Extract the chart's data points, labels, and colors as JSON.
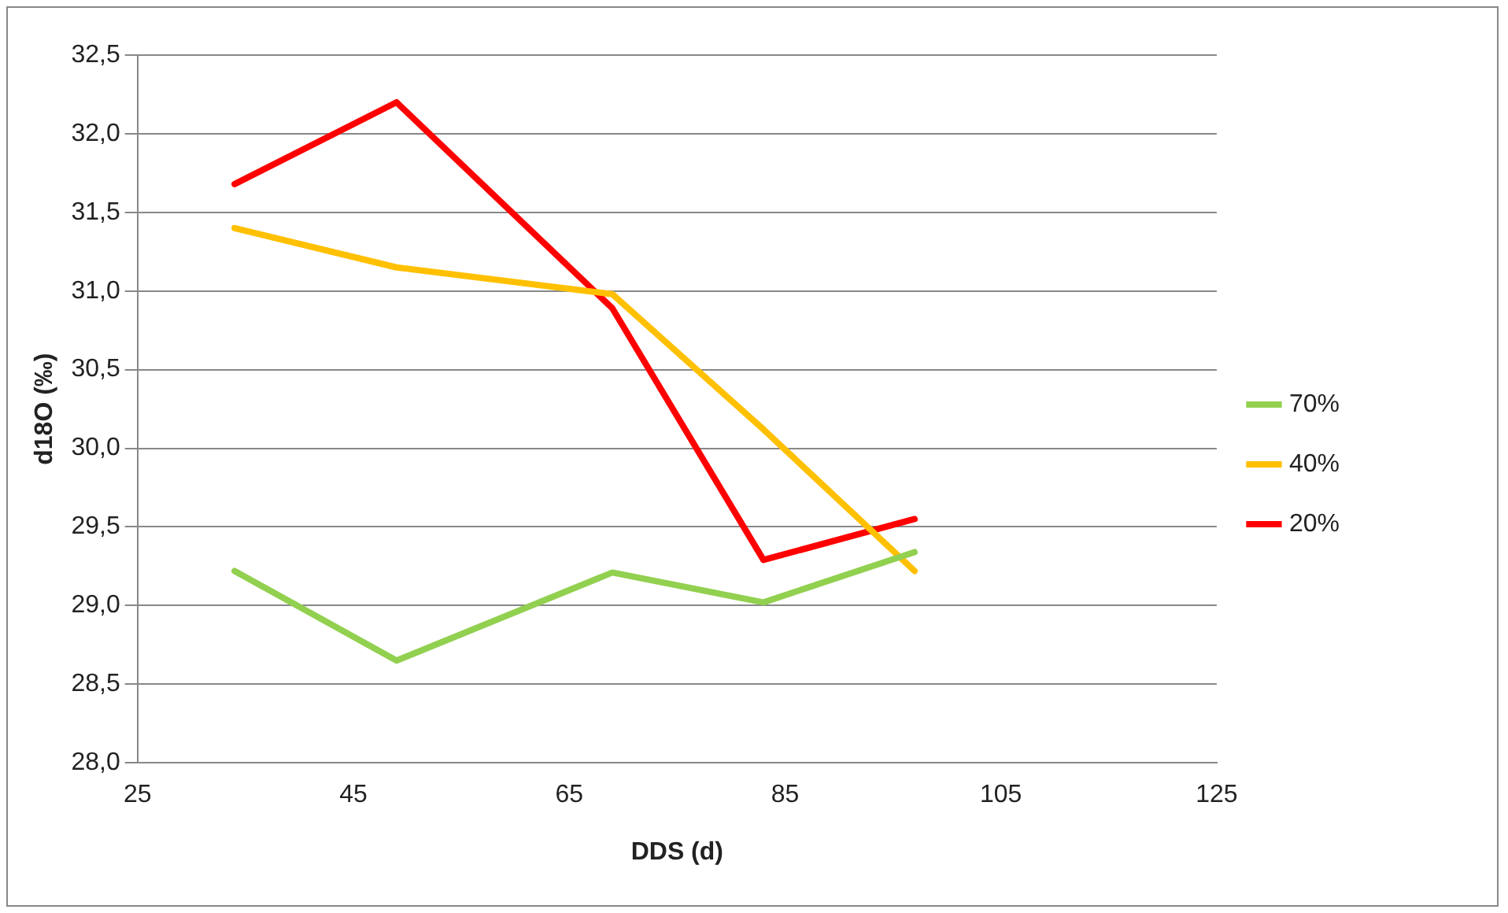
{
  "chart_data": {
    "type": "line",
    "xlabel": "DDS (d)",
    "ylabel": "d18O (‰)",
    "x": [
      34,
      49,
      69,
      83,
      97
    ],
    "series": [
      {
        "name": "70%",
        "color": "#92d050",
        "values": [
          29.22,
          28.65,
          29.21,
          29.02,
          29.34
        ]
      },
      {
        "name": "40%",
        "color": "#ffc000",
        "values": [
          31.4,
          31.15,
          30.98,
          30.12,
          29.22
        ]
      },
      {
        "name": "20%",
        "color": "#ff0000",
        "values": [
          31.68,
          32.2,
          30.89,
          29.29,
          29.55
        ]
      }
    ],
    "xlim": [
      25,
      125
    ],
    "xticks": [
      25,
      45,
      65,
      85,
      105,
      125
    ],
    "ylim": [
      28,
      32.5
    ],
    "yticks": [
      {
        "value": 28,
        "label": "28,0"
      },
      {
        "value": 28.5,
        "label": "28,5"
      },
      {
        "value": 29,
        "label": "29,0"
      },
      {
        "value": 29.5,
        "label": "29,5"
      },
      {
        "value": 30,
        "label": "30,0"
      },
      {
        "value": 30.5,
        "label": "30,5"
      },
      {
        "value": 31,
        "label": "31,0"
      },
      {
        "value": 31.5,
        "label": "31,5"
      },
      {
        "value": 32,
        "label": "32,0"
      },
      {
        "value": 32.5,
        "label": "32,5"
      }
    ],
    "grid": "y",
    "legend": "right",
    "marker": "none",
    "line_style": "solid"
  }
}
